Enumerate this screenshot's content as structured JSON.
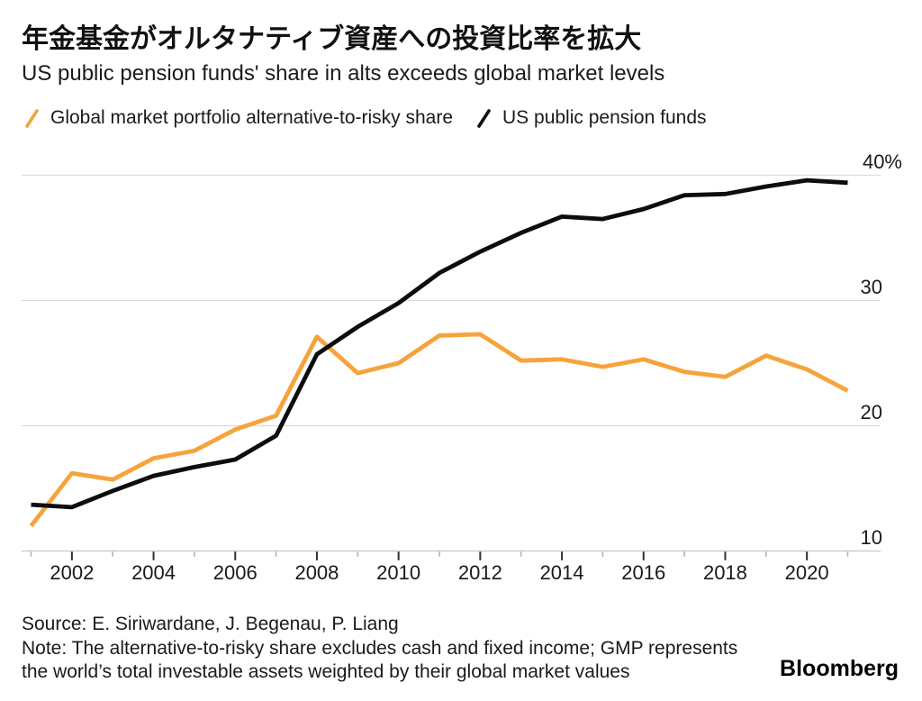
{
  "header": {
    "title_ja": "年金基金がオルタナティブ資産への投資比率を拡大",
    "subtitle_en": "US public pension funds' share in alts exceeds global market levels"
  },
  "legend": {
    "items": [
      {
        "label": "Global market portfolio alternative-to-risky share",
        "color": "#F6A33C"
      },
      {
        "label": "US public pension funds",
        "color": "#0d0d0d"
      }
    ]
  },
  "chart_data": {
    "type": "line",
    "x": [
      2001,
      2002,
      2003,
      2004,
      2005,
      2006,
      2007,
      2008,
      2009,
      2010,
      2011,
      2012,
      2013,
      2014,
      2015,
      2016,
      2017,
      2018,
      2019,
      2020,
      2021
    ],
    "series": [
      {
        "name": "Global market portfolio alternative-to-risky share",
        "color": "#F6A33C",
        "values": [
          12.0,
          16.2,
          15.7,
          17.4,
          18.0,
          19.7,
          20.8,
          27.1,
          24.2,
          25.0,
          27.2,
          27.3,
          25.2,
          25.3,
          24.7,
          25.3,
          24.3,
          23.9,
          25.6,
          24.5,
          22.8
        ]
      },
      {
        "name": "US public pension funds",
        "color": "#0d0d0d",
        "values": [
          13.7,
          13.5,
          14.8,
          16.0,
          16.7,
          17.3,
          19.2,
          25.7,
          27.9,
          29.8,
          32.2,
          33.9,
          35.4,
          36.7,
          36.5,
          37.3,
          38.4,
          38.5,
          39.1,
          39.6,
          39.4
        ]
      }
    ],
    "ylabel": "%",
    "ylim": [
      10,
      40
    ],
    "y_ticks": [
      {
        "value": 40,
        "label": "40%"
      },
      {
        "value": 30,
        "label": "30"
      },
      {
        "value": 20,
        "label": "20"
      },
      {
        "value": 10,
        "label": "10"
      }
    ],
    "x_tick_years_major": [
      2002,
      2004,
      2006,
      2008,
      2010,
      2012,
      2014,
      2016,
      2018,
      2020
    ],
    "x_tick_years_minor": [
      2001,
      2003,
      2005,
      2007,
      2009,
      2011,
      2013,
      2015,
      2017,
      2019,
      2021
    ],
    "grid": "horizontal",
    "legend_position": "top-left",
    "gridline_color": "#dcdcdc",
    "axis_color": "#c6c6c6",
    "major_tick_color": "#2f2f2f",
    "minor_tick_color": "#b3b3b3"
  },
  "footer": {
    "source": "Source: E. Siriwardane, J. Begenau, P. Liang",
    "note_lines": [
      "Note: The alternative-to-risky share excludes cash and fixed income; GMP represents",
      "the world’s total investable assets weighted by their global market values"
    ],
    "brand": "Bloomberg"
  }
}
